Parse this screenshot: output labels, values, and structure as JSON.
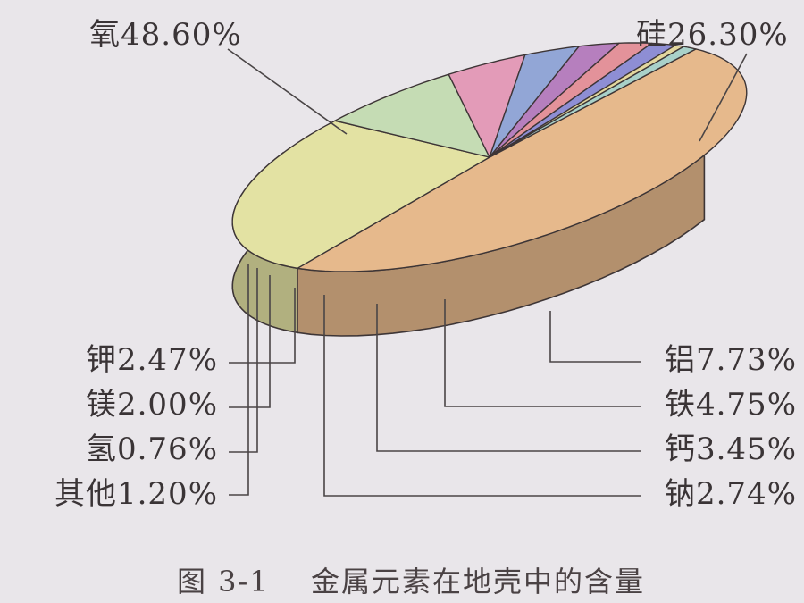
{
  "chart_data": {
    "type": "pie",
    "style": "3d-exploded-tilted",
    "caption": {
      "number": "图 3-1",
      "text": "金属元素在地壳中的含量"
    },
    "slices": [
      {
        "name": "氧",
        "value": 48.6,
        "label": "48.60%",
        "color": "#e6b98c"
      },
      {
        "name": "硅",
        "value": 26.3,
        "label": "26.30%",
        "color": "#e3e2a3"
      },
      {
        "name": "铝",
        "value": 7.73,
        "label": "7.73%",
        "color": "#c5dcb4"
      },
      {
        "name": "铁",
        "value": 4.75,
        "label": "4.75%",
        "color": "#e39bb8"
      },
      {
        "name": "钙",
        "value": 3.45,
        "label": "3.45%",
        "color": "#92a6d6"
      },
      {
        "name": "钠",
        "value": 2.74,
        "label": "2.74%",
        "color": "#b67fbe"
      },
      {
        "name": "钾",
        "value": 2.47,
        "label": "2.47%",
        "color": "#e3929a"
      },
      {
        "name": "镁",
        "value": 2.0,
        "label": "2.00%",
        "color": "#8e8ed4"
      },
      {
        "name": "氢",
        "value": 0.76,
        "label": "0.76%",
        "color": "#e3d79e"
      },
      {
        "name": "其他",
        "value": 1.2,
        "label": "1.20%",
        "color": "#a9d1c9"
      }
    ],
    "legend": "none"
  }
}
